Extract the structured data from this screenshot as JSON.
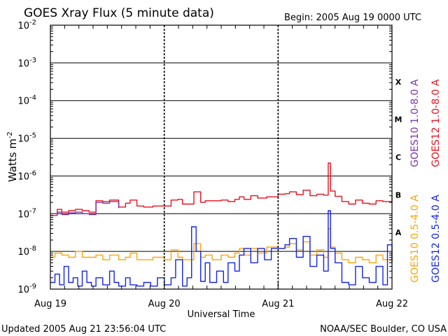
{
  "chart_data": {
    "type": "line",
    "title": "GOES Xray Flux (5 minute data)",
    "begin_label": "Begin:  2005 Aug 19 0000 UTC",
    "xlabel": "Universal Time",
    "ylabel": "Watts m",
    "ylabel_exponent": "-2",
    "x_ticks": [
      "Aug 19",
      "Aug 20",
      "Aug 21",
      "Aug 22"
    ],
    "xlim_days": [
      0,
      3
    ],
    "ylim": [
      1e-09,
      0.01
    ],
    "y_scale": "log",
    "y_ticks": [
      {
        "base": "10",
        "exp": "-9"
      },
      {
        "base": "10",
        "exp": "-8"
      },
      {
        "base": "10",
        "exp": "-7"
      },
      {
        "base": "10",
        "exp": "-6"
      },
      {
        "base": "10",
        "exp": "-5"
      },
      {
        "base": "10",
        "exp": "-4"
      },
      {
        "base": "10",
        "exp": "-3"
      },
      {
        "base": "10",
        "exp": "-2"
      }
    ],
    "flare_classes": [
      {
        "label": "A",
        "value": 1e-08
      },
      {
        "label": "B",
        "value": 1e-07
      },
      {
        "label": "C",
        "value": 1e-06
      },
      {
        "label": "M",
        "value": 1e-05
      },
      {
        "label": "X",
        "value": 0.0001
      }
    ],
    "series": [
      {
        "name": "GOES12 1.0-8.0 A",
        "color": "#e8101e",
        "x": [
          0,
          0.06,
          0.1,
          0.16,
          0.22,
          0.28,
          0.34,
          0.4,
          0.46,
          0.52,
          0.6,
          0.66,
          0.7,
          0.76,
          0.82,
          0.9,
          1.0,
          1.06,
          1.12,
          1.16,
          1.2,
          1.26,
          1.32,
          1.36,
          1.42,
          1.5,
          1.56,
          1.62,
          1.66,
          1.7,
          1.76,
          1.82,
          1.9,
          2.0,
          2.06,
          2.1,
          2.16,
          2.22,
          2.28,
          2.34,
          2.4,
          2.44,
          2.46,
          2.5,
          2.56,
          2.62,
          2.68,
          2.74,
          2.8,
          2.86,
          2.92,
          3.0
        ],
        "values": [
          1e-07,
          1.3e-07,
          1.1e-07,
          1.2e-07,
          1.3e-07,
          1.2e-07,
          1.1e-07,
          2.2e-07,
          2.1e-07,
          2.3e-07,
          1.5e-07,
          1.9e-07,
          2.3e-07,
          1.6e-07,
          1.5e-07,
          1.6e-07,
          1.6e-07,
          2.3e-07,
          2.4e-07,
          1.8e-07,
          1.8e-07,
          3.8e-07,
          2e-07,
          2.2e-07,
          2.2e-07,
          2.3e-07,
          2.1e-07,
          2.4e-07,
          2.8e-07,
          2.4e-07,
          3e-07,
          2.6e-07,
          2.8e-07,
          3.3e-07,
          3.4e-07,
          3.8e-07,
          3.2e-07,
          4.2e-07,
          3e-07,
          3.3e-07,
          3.1e-07,
          2.2e-06,
          4e-07,
          2.9e-07,
          2.1e-07,
          1.8e-07,
          2.3e-07,
          1.9e-07,
          1.8e-07,
          2.2e-07,
          2.1e-07,
          3.1e-07
        ]
      },
      {
        "name": "GOES10 1.0-8.0 A",
        "color": "#7a34b0",
        "x": [
          0,
          0.06,
          0.1,
          0.16,
          0.22,
          0.28,
          0.34,
          0.4,
          0.46,
          0.52,
          0.6
        ],
        "values": [
          9e-08,
          1.1e-07,
          9.5e-08,
          1.05e-07,
          1.1e-07,
          1e-07,
          9.5e-08,
          2e-07,
          1.9e-07,
          2.1e-07,
          1.4e-07
        ]
      },
      {
        "name": "GOES10 0.5-4.0 A",
        "color": "#ffa500",
        "x": [
          0,
          0.04,
          0.1,
          0.16,
          0.22,
          0.28,
          0.34,
          0.4,
          0.46,
          0.52,
          0.6,
          0.66,
          0.7,
          0.76,
          0.82,
          0.9,
          1.0,
          1.06,
          1.12,
          1.16,
          1.2,
          1.26,
          1.32,
          1.36,
          1.42,
          1.5,
          1.56,
          1.62,
          1.66,
          1.7,
          1.76,
          1.82,
          1.9,
          2.0,
          2.06,
          2.1,
          2.16,
          2.22,
          2.28,
          2.34,
          2.4,
          2.44,
          2.46,
          2.5,
          2.56,
          2.62,
          2.68,
          2.74,
          2.8,
          2.86,
          2.92,
          3.0
        ],
        "values": [
          7e-09,
          9e-09,
          8e-09,
          7e-09,
          1e-08,
          7e-09,
          7e-09,
          8e-09,
          6e-09,
          8e-09,
          6e-09,
          7e-09,
          9e-09,
          6e-09,
          6e-09,
          7e-09,
          6e-09,
          1.1e-08,
          7e-09,
          6e-09,
          6e-09,
          1.6e-08,
          7e-09,
          8e-09,
          6e-09,
          8e-09,
          7e-09,
          9e-09,
          1.2e-08,
          8e-09,
          1.2e-08,
          9e-09,
          1.3e-08,
          1.2e-08,
          1.3e-08,
          1.6e-08,
          1.1e-08,
          1.8e-08,
          8e-09,
          1.1e-08,
          7e-09,
          4e-08,
          1.3e-08,
          9e-09,
          6e-09,
          5e-09,
          7e-09,
          6e-09,
          5e-09,
          8e-09,
          6e-09,
          9e-09
        ]
      },
      {
        "name": "GOES12 0.5-4.0 A",
        "color": "#1424e6",
        "x": [
          0,
          0.04,
          0.08,
          0.12,
          0.16,
          0.2,
          0.24,
          0.28,
          0.32,
          0.36,
          0.4,
          0.46,
          0.52,
          0.56,
          0.6,
          0.66,
          0.7,
          0.76,
          0.82,
          0.88,
          0.94,
          1.0,
          1.06,
          1.1,
          1.16,
          1.2,
          1.24,
          1.28,
          1.32,
          1.36,
          1.4,
          1.46,
          1.52,
          1.56,
          1.62,
          1.66,
          1.7,
          1.76,
          1.82,
          1.88,
          1.94,
          2.0,
          2.06,
          2.1,
          2.16,
          2.22,
          2.28,
          2.34,
          2.4,
          2.44,
          2.46,
          2.5,
          2.56,
          2.62,
          2.68,
          2.74,
          2.8,
          2.86,
          2.92,
          2.96,
          3.0
        ],
        "values": [
          1.5e-09,
          2.5e-09,
          1.3e-09,
          4e-09,
          1.5e-09,
          2e-09,
          1.2e-09,
          3e-09,
          1.5e-09,
          1.2e-09,
          2e-09,
          1.3e-09,
          3e-09,
          1.5e-09,
          1.2e-09,
          2e-09,
          1.3e-09,
          1.2e-09,
          1.5e-09,
          1.2e-09,
          2e-09,
          1.3e-09,
          2e-09,
          6e-09,
          1.2e-09,
          2e-09,
          4.5e-08,
          1e-08,
          1.6e-09,
          5e-09,
          1.5e-09,
          3e-09,
          1.5e-09,
          5e-09,
          3e-09,
          8e-09,
          1.2e-08,
          5e-09,
          1.2e-08,
          6e-09,
          1.2e-08,
          1.2e-08,
          1.5e-08,
          2.2e-08,
          7e-09,
          2.5e-08,
          4e-09,
          8e-09,
          3e-09,
          1.2e-07,
          1.2e-08,
          5e-09,
          1.5e-09,
          1.3e-09,
          4e-09,
          2e-09,
          1.5e-09,
          4e-09,
          1.3e-09,
          1.5e-08,
          5e-09
        ]
      }
    ],
    "footer_left": "Updated 2005 Aug 21 23:56:04 UTC",
    "footer_right": "NOAA/SEC Boulder, CO USA"
  }
}
